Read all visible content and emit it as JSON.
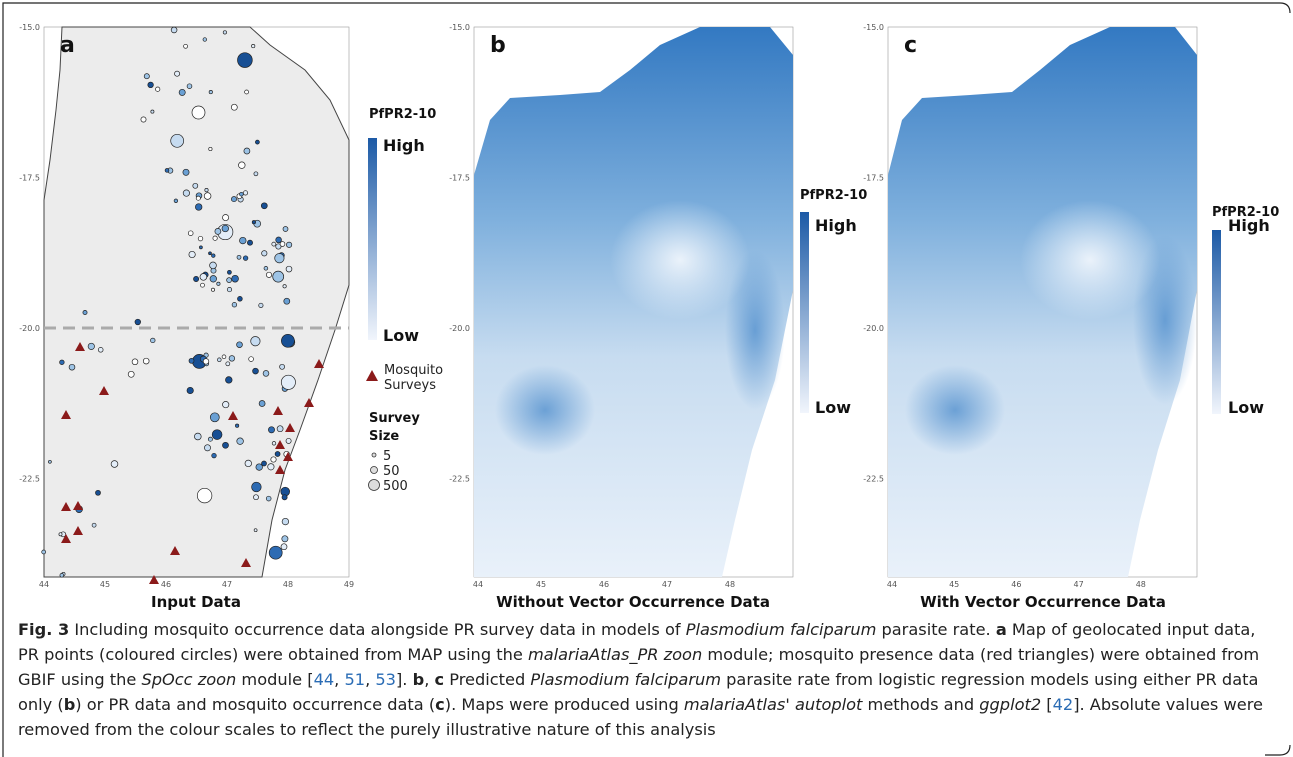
{
  "panels": [
    {
      "letter": "a",
      "title": "Input Data",
      "legend_title": "PfPR2-10",
      "high": "High",
      "low": "Low",
      "yticks": [
        "-15.0",
        "-17.5",
        "-20.0",
        "-22.5"
      ],
      "xticks": [
        "44",
        "45",
        "46",
        "47",
        "48",
        "49"
      ],
      "mosquito_label": [
        "Mosquito",
        "Surveys"
      ],
      "size_title": [
        "Survey",
        "Size"
      ],
      "sizes": [
        "5",
        "50",
        "500"
      ]
    },
    {
      "letter": "b",
      "title": "Without Vector Occurrence Data",
      "legend_title": "PfPR2-10",
      "high": "High",
      "low": "Low",
      "yticks": [
        "-15.0",
        "-17.5",
        "-20.0",
        "-22.5"
      ],
      "xticks": [
        "44",
        "45",
        "46",
        "47",
        "48"
      ]
    },
    {
      "letter": "c",
      "title": "With Vector Occurrence Data",
      "legend_title": "PfPR2-10",
      "high": "High",
      "low": "Low",
      "yticks": [
        "-15.0",
        "-17.5",
        "-20.0",
        "-22.5"
      ],
      "xticks": [
        "44",
        "45",
        "46",
        "47",
        "48"
      ]
    }
  ],
  "caption": {
    "runs": [
      "Fig. 3",
      " Including mosquito occurrence data alongside PR survey data in models of ",
      "Plasmodium falciparum",
      " parasite rate. ",
      "a",
      " Map of geolocated input data, PR points (coloured circles) were obtained from MAP using the ",
      "malariaAtlas_PR zoon",
      " module; mosquito presence data (red triangles) were obtained from GBIF using the ",
      "SpOcc zoon",
      " module [",
      "44",
      ", ",
      "51",
      ", ",
      "53",
      "]. ",
      "b",
      ", ",
      "c",
      " Predicted ",
      "Plasmodium falciparum",
      " parasite rate from logistic regression models using either PR data only (",
      "b",
      ") or PR data and mosquito occurrence data (",
      "c",
      "). Maps were produced using ",
      "malariaAtlas",
      "' ",
      "autoplot",
      " methods and ",
      "ggplot2",
      " [",
      "42",
      "]. Absolute values were removed from the colour scales to reflect the purely illustrative nature of this analysis"
    ]
  }
}
